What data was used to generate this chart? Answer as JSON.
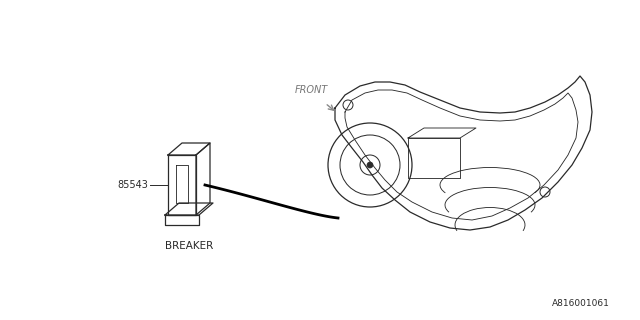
{
  "bg_color": "#ffffff",
  "line_color": "#2a2a2a",
  "fig_width": 6.4,
  "fig_height": 3.2,
  "dpi": 100,
  "part_number": "85543",
  "label_breaker": "BREAKER",
  "label_front": "FRONT",
  "diagram_id": "A816001061"
}
